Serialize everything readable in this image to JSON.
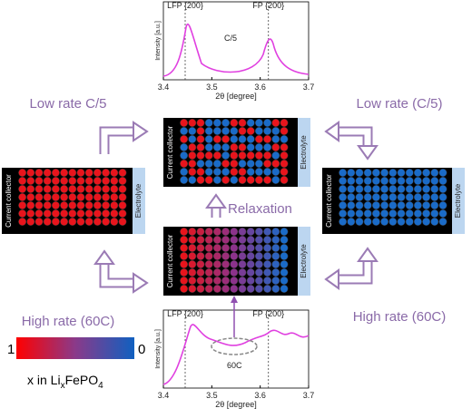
{
  "top_plot": {
    "peak_labels": [
      "LFP {200}",
      "FP {200}"
    ],
    "rate": "C/5",
    "y_label": "Intensity [a.u.]",
    "x_label": "2θ [degree]",
    "ticks": [
      "3.4",
      "3.5",
      "3.6",
      "3.7"
    ]
  },
  "bottom_plot": {
    "peak_labels": [
      "LFP {200}",
      "FP {200}"
    ],
    "rate": "60C",
    "y_label": "Intensity [a.u.]",
    "x_label": "2θ [degree]",
    "ticks": [
      "3.4",
      "3.5",
      "3.6",
      "3.7"
    ]
  },
  "labels": {
    "low_left": "Low rate C/5",
    "low_right": "Low rate (C/5)",
    "high_left": "High rate (60C)",
    "high_right": "High rate (60C)",
    "relaxation": "Relaxation"
  },
  "electrode": {
    "collector": "Current collector",
    "electrolyte": "Electrolyte"
  },
  "colorbar": {
    "max": "1",
    "min": "0",
    "caption": [
      "x in Li",
      "x",
      "FePO",
      "4"
    ]
  }
}
